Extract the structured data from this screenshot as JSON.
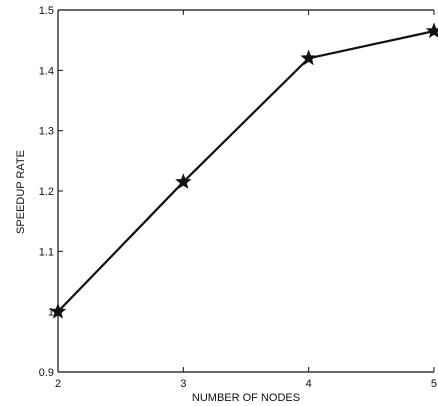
{
  "chart_data": {
    "type": "line",
    "title": "",
    "xlabel": "NUMBER OF NODES",
    "ylabel": "SPEEDUP RATE",
    "x": [
      2,
      3,
      4,
      5
    ],
    "xticks": [
      "2",
      "3",
      "4",
      "5"
    ],
    "yticks": [
      "0.9",
      "1",
      "1.1",
      "1.2",
      "1.3",
      "1.4",
      "1.5"
    ],
    "xlim": [
      2,
      5
    ],
    "ylim": [
      0.9,
      1.5
    ],
    "grid": false,
    "marker": "star",
    "series": [
      {
        "values": [
          1.0,
          1.215,
          1.42,
          1.465
        ],
        "color": "#111111"
      }
    ]
  }
}
